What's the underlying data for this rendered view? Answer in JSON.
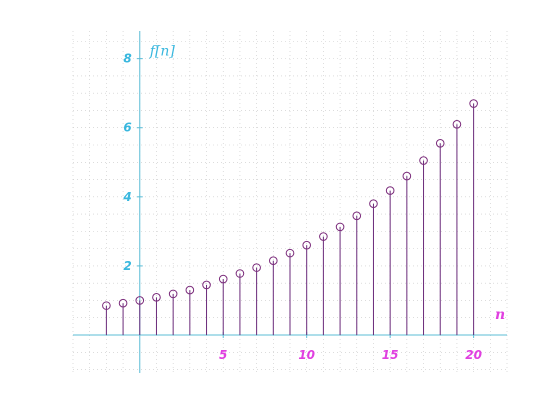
{
  "chart_data": {
    "type": "stem",
    "title": "",
    "xlabel": "n",
    "ylabel": "f[n]",
    "xlim": [
      -4,
      22
    ],
    "ylim": [
      -1.1,
      8.8
    ],
    "x_ticks": [
      5,
      10,
      15,
      20
    ],
    "x_tick_labels": [
      "5",
      "10",
      "15",
      "20"
    ],
    "y_ticks": [
      2,
      4,
      6,
      8
    ],
    "y_tick_labels": [
      "2",
      "4",
      "6",
      "8"
    ],
    "grid": true,
    "series": [
      {
        "x": [
          -2,
          -1,
          0,
          1,
          2,
          3,
          4,
          5,
          6,
          7,
          8,
          9,
          10,
          11,
          12,
          13,
          14,
          15,
          16,
          17,
          18,
          19,
          20
        ],
        "y": [
          0.85,
          0.92,
          1.0,
          1.09,
          1.19,
          1.3,
          1.45,
          1.62,
          1.78,
          1.95,
          2.15,
          2.37,
          2.6,
          2.85,
          3.13,
          3.45,
          3.8,
          4.18,
          4.6,
          5.05,
          5.55,
          6.1,
          6.7
        ]
      }
    ],
    "colors": {
      "axis": "#5bbcd6",
      "x_tick_labels": "#e040e0",
      "y_tick_labels": "#39b7de",
      "xlabel": "#e040e0",
      "ylabel": "#39b7de",
      "stems": "#6a2a7a",
      "markers": "#7a2a7a",
      "grid": "#c8c8c8"
    }
  }
}
